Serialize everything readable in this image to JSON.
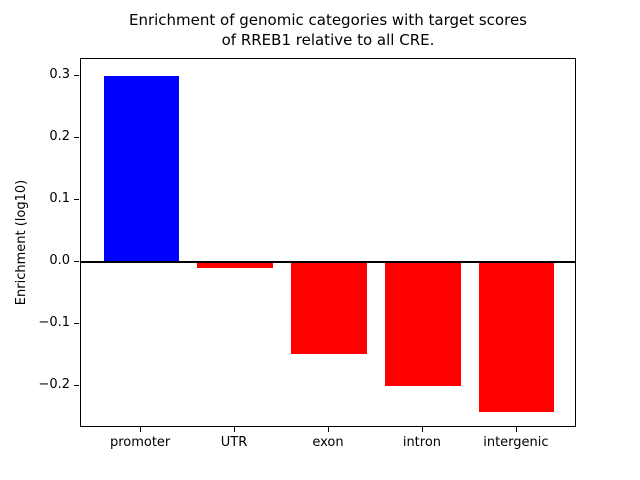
{
  "chart_data": {
    "type": "bar",
    "title": "Enrichment of genomic categories with target scores\nof RREB1 relative to all CRE.",
    "xlabel": "",
    "ylabel": "Enrichment (log10)",
    "categories": [
      "promoter",
      "UTR",
      "exon",
      "intron",
      "intergenic"
    ],
    "values": [
      0.3,
      -0.01,
      -0.148,
      -0.199,
      -0.242
    ],
    "bar_colors": [
      "#0000ff",
      "#ff0000",
      "#ff0000",
      "#ff0000",
      "#ff0000"
    ],
    "ylim": [
      -0.267,
      0.327
    ],
    "yticks": [
      -0.2,
      -0.1,
      0.0,
      0.1,
      0.2,
      0.3
    ],
    "zero_line_y": 0,
    "grid": false,
    "legend": "none",
    "bar_width_fraction": 0.8,
    "axis_color": "#000000",
    "background_color": "#ffffff"
  }
}
